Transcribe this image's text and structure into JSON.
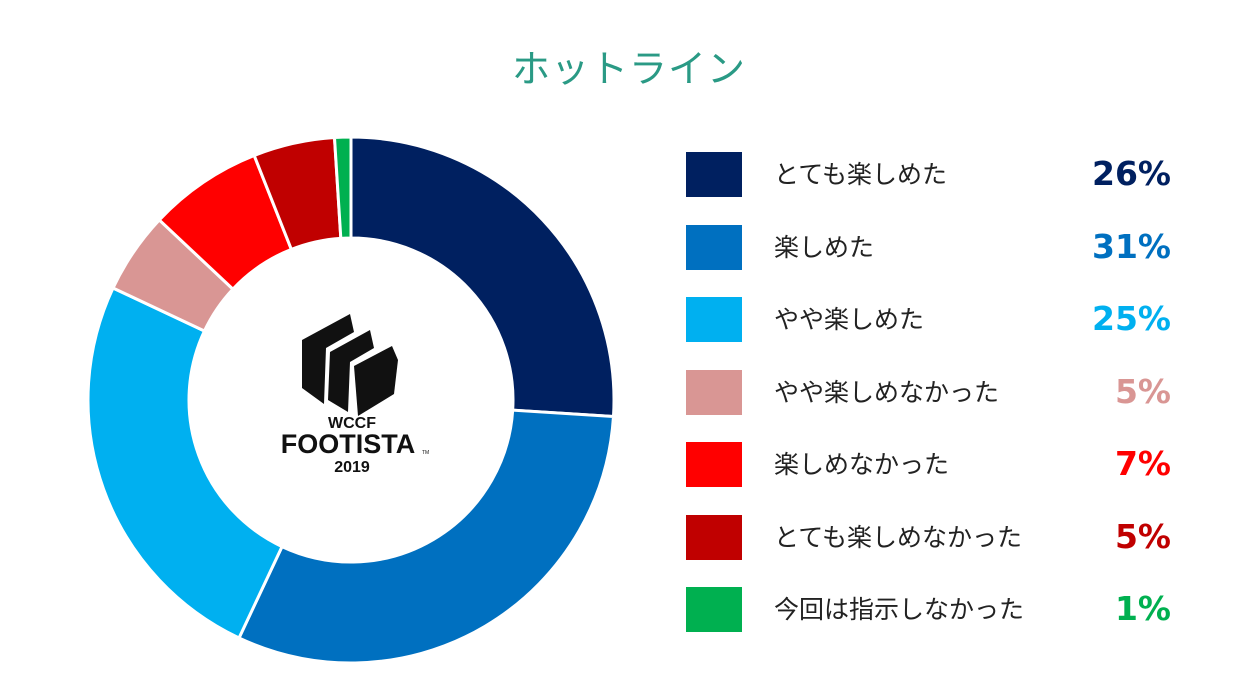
{
  "chart_data": {
    "type": "pie",
    "title": "ホットライン",
    "hole": true,
    "categories": [
      "とても楽しめた",
      "楽しめた",
      "やや楽しめた",
      "やや楽しめなかった",
      "楽しめなかった",
      "とても楽しめなかった",
      "今回は指示しなかった"
    ],
    "values": [
      26,
      31,
      25,
      5,
      7,
      5,
      1
    ],
    "value_labels": [
      "26%",
      "31%",
      "25%",
      "5%",
      "7%",
      "5%",
      "1%"
    ],
    "colors": [
      "#002060",
      "#0070c0",
      "#00b0f0",
      "#d99694",
      "#ff0000",
      "#c00000",
      "#00b050"
    ],
    "legend": "right"
  },
  "logo": {
    "line1": "WCCF",
    "line2": "FOOTISTA",
    "line3": "2019",
    "tm": "TM"
  }
}
